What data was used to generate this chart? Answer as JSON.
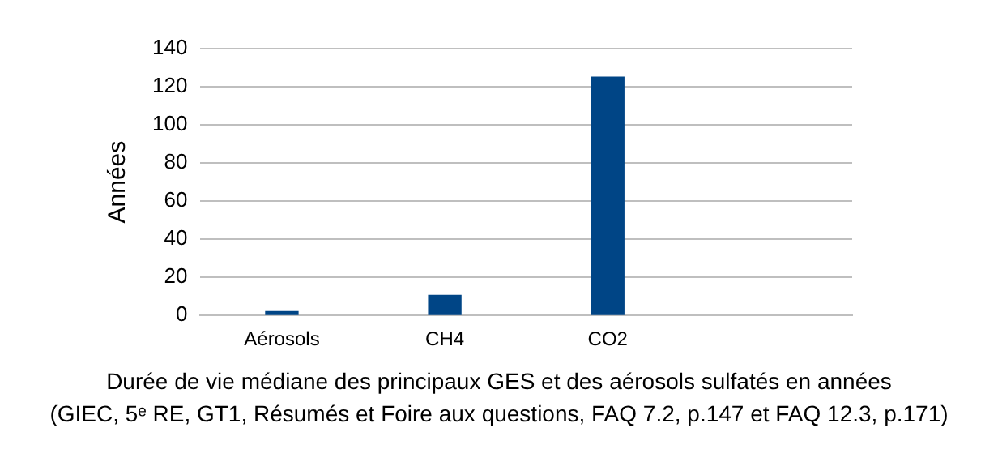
{
  "chart_data": {
    "type": "bar",
    "title": "Durée de vie médiane des principaux GES et des aérosols sulfatés en années",
    "subtitle": "(GIEC, 5ᵉ RE, GT1, Résumés et Foire aux questions, FAQ 7.2, p.147 et FAQ 12.3, p.171)",
    "ylabel": "Années",
    "categories": [
      "Aérosols",
      "CH4",
      "CO2",
      null
    ],
    "values": [
      2,
      10.5,
      125,
      null
    ],
    "color": "#004586",
    "ylim": [
      0,
      140
    ],
    "yticks": [
      0,
      20,
      40,
      60,
      80,
      100,
      120,
      140
    ],
    "grid": "y",
    "legend": false
  }
}
